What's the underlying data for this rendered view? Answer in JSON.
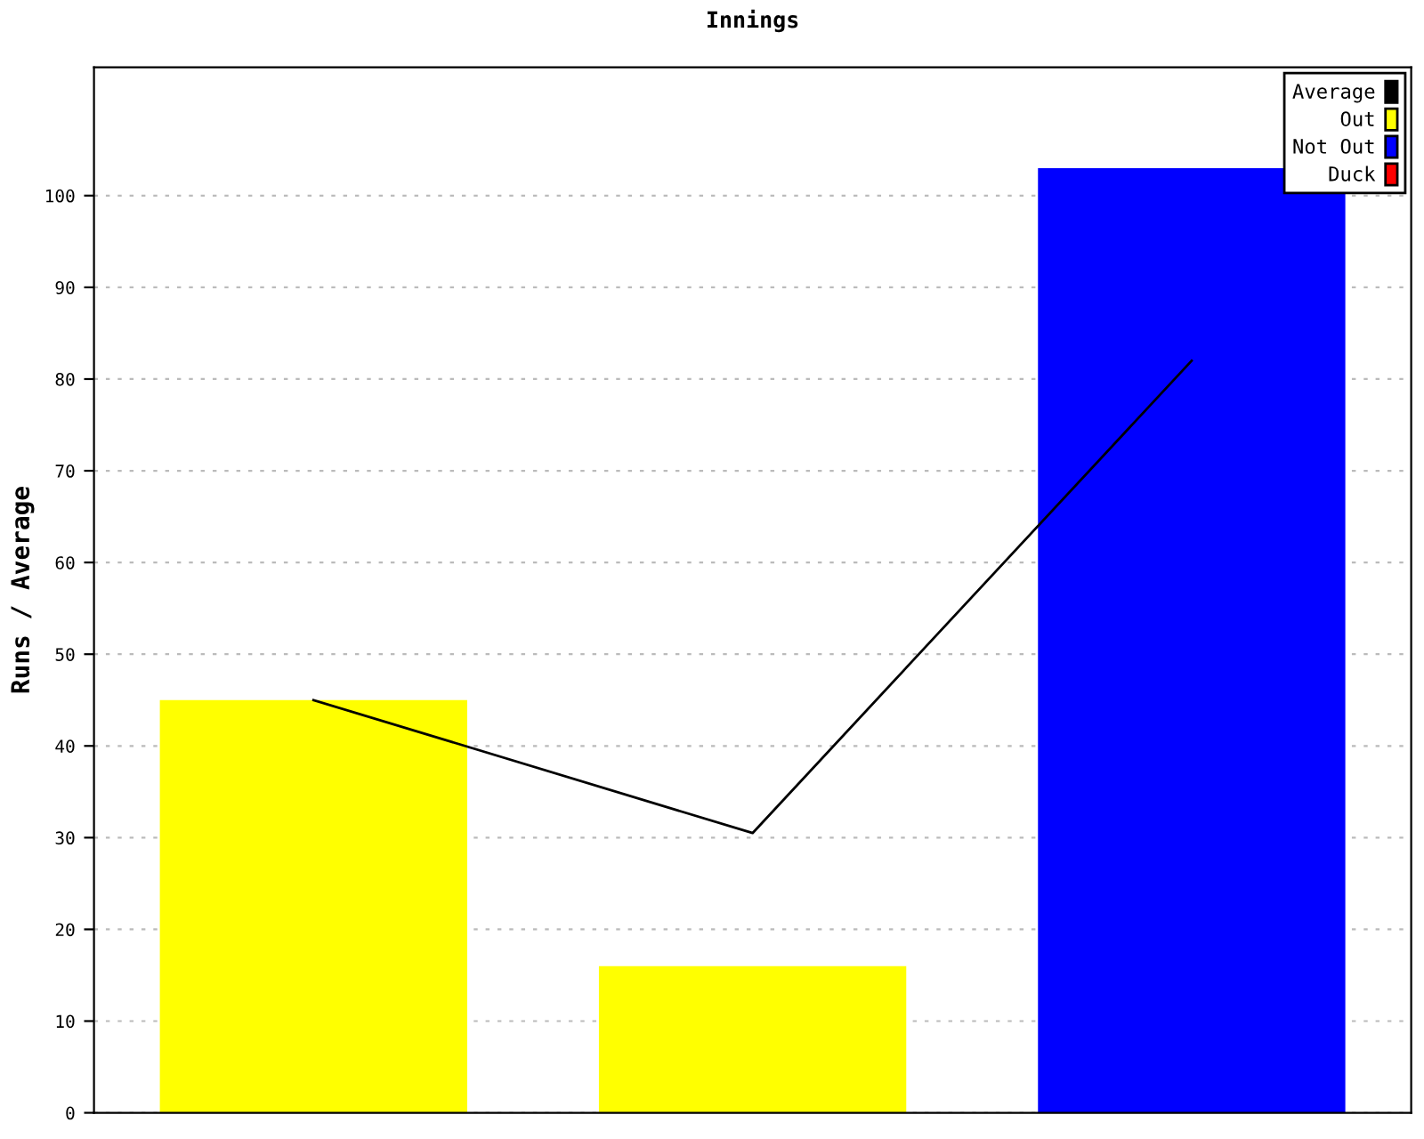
{
  "chart_data": {
    "type": "bar",
    "title": "Innings",
    "ylabel": "Runs / Average",
    "categories": [
      null,
      null,
      null
    ],
    "series": [
      {
        "name": "Average",
        "type": "line",
        "color": "#000000",
        "values": [
          45,
          30.5,
          82
        ]
      },
      {
        "name": "Out",
        "color": "#ffff00",
        "values": [
          45,
          16,
          null
        ]
      },
      {
        "name": "Not Out",
        "color": "#0000ff",
        "values": [
          null,
          null,
          103
        ]
      },
      {
        "name": "Duck",
        "color": "#ff0000",
        "values": [
          null,
          null,
          null
        ]
      }
    ],
    "ylim": [
      0,
      114
    ],
    "yticks": [
      0,
      10,
      20,
      30,
      40,
      50,
      60,
      70,
      80,
      90,
      100
    ],
    "grid": "y",
    "legend": "top right"
  }
}
